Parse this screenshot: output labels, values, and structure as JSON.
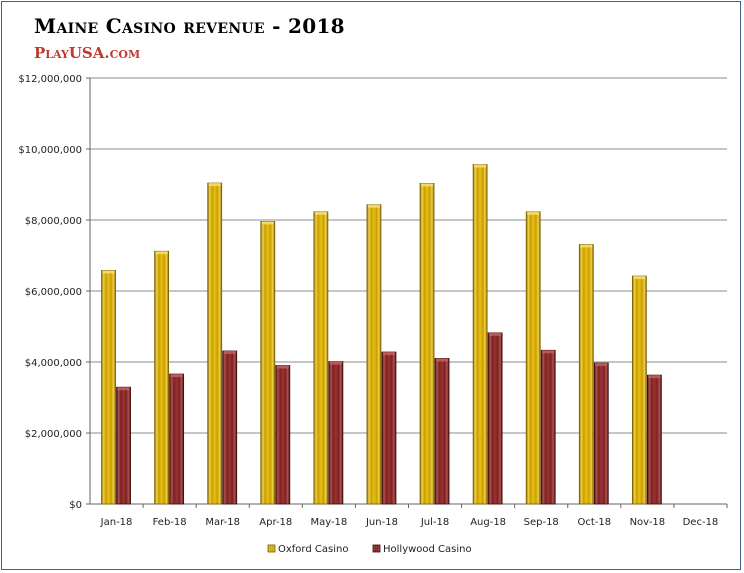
{
  "chart_data": {
    "type": "bar",
    "title": "Maine Casino revenue - 2018",
    "brand": "PlayUSA.com",
    "categories": [
      "Jan-18",
      "Feb-18",
      "Mar-18",
      "Apr-18",
      "May-18",
      "Jun-18",
      "Jul-18",
      "Aug-18",
      "Sep-18",
      "Oct-18",
      "Nov-18",
      "Dec-18"
    ],
    "series": [
      {
        "name": "Oxford Casino",
        "color": "#e0b400",
        "values": [
          6580000,
          7120000,
          9040000,
          7960000,
          8230000,
          8430000,
          9030000,
          9560000,
          8230000,
          7310000,
          6420000,
          null
        ]
      },
      {
        "name": "Hollywood Casino",
        "color": "#8b2a2a",
        "values": [
          3290000,
          3660000,
          4310000,
          3900000,
          4010000,
          4280000,
          4100000,
          4820000,
          4330000,
          3970000,
          3630000,
          null
        ]
      }
    ],
    "ylim": [
      0,
      12000000
    ],
    "yticks": [
      "$0",
      "$2,000,000",
      "$4,000,000",
      "$6,000,000",
      "$8,000,000",
      "$10,000,000",
      "$12,000,000"
    ],
    "grid": true,
    "legend": "bottom"
  }
}
